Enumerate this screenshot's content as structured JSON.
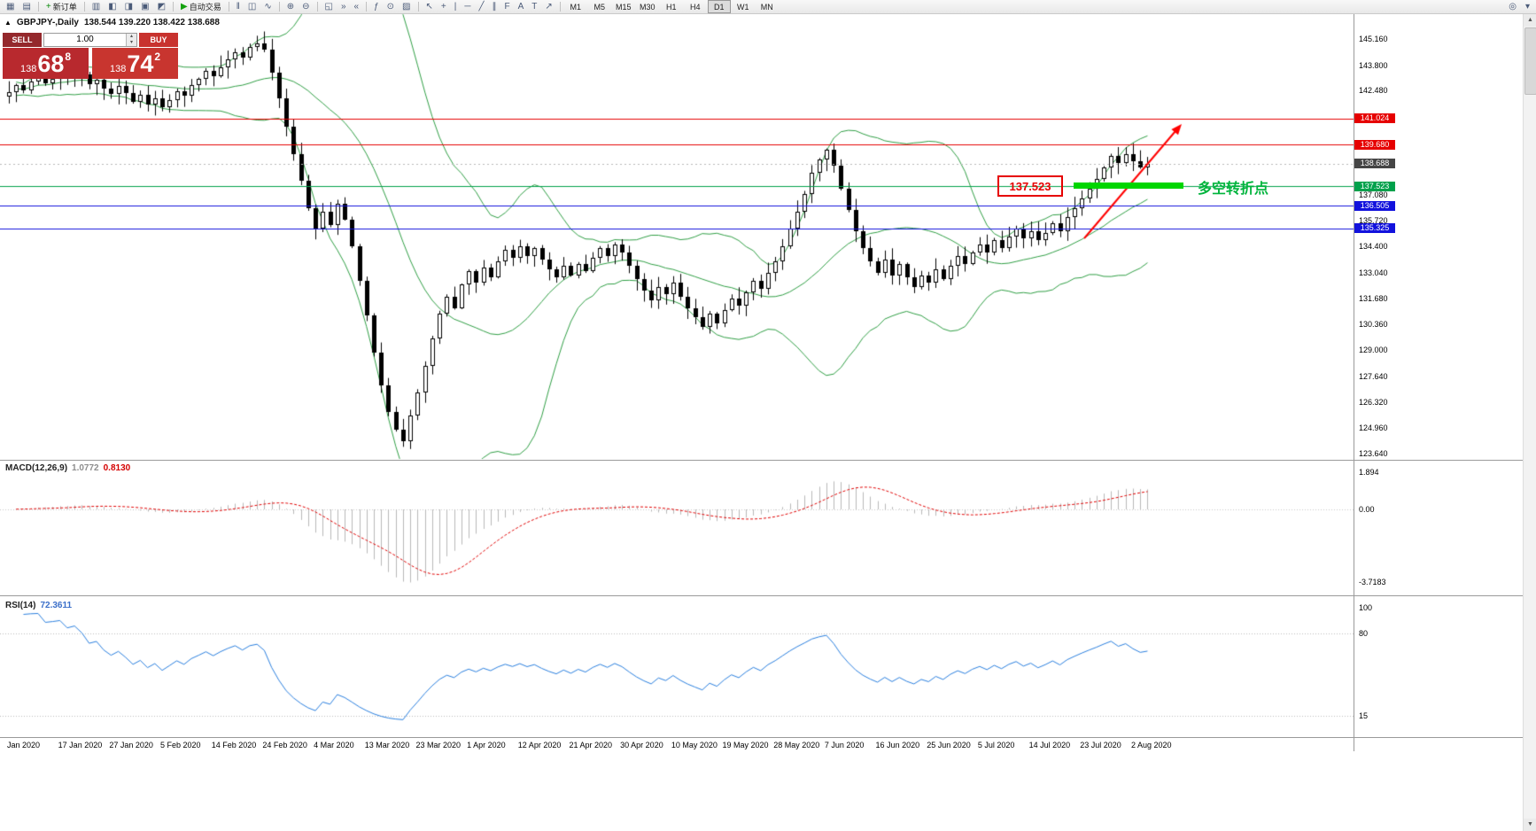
{
  "toolbar": {
    "items": [
      {
        "name": "new-chart-icon",
        "glyph": "▦"
      },
      {
        "name": "chart-profiles-icon",
        "glyph": "▤"
      },
      {
        "name": "sep"
      },
      {
        "name": "new-order-button",
        "glyph": "+",
        "glyph_color": "#0a8a0a",
        "label": "新订单"
      },
      {
        "name": "sep"
      },
      {
        "name": "market-watch-icon",
        "glyph": "▥"
      },
      {
        "name": "data-window-icon",
        "glyph": "◧"
      },
      {
        "name": "navigator-icon",
        "glyph": "◨"
      },
      {
        "name": "terminal-icon",
        "glyph": "▣"
      },
      {
        "name": "strategy-tester-icon",
        "glyph": "◩"
      },
      {
        "name": "sep"
      },
      {
        "name": "autotrading-button",
        "glyph": "▶",
        "glyph_color": "#13a10e",
        "label": "自动交易"
      },
      {
        "name": "sep"
      },
      {
        "name": "bar-chart-icon",
        "glyph": "‖"
      },
      {
        "name": "candlestick-chart-icon",
        "glyph": "◫"
      },
      {
        "name": "line-chart-icon",
        "glyph": "∿"
      },
      {
        "name": "sep"
      },
      {
        "name": "zoom-in-icon",
        "glyph": "⊕"
      },
      {
        "name": "zoom-out-icon",
        "glyph": "⊖"
      },
      {
        "name": "sep"
      },
      {
        "name": "tile-windows-icon",
        "glyph": "◱"
      },
      {
        "name": "autoscroll-icon",
        "glyph": "»"
      },
      {
        "name": "chart-shift-icon",
        "glyph": "«"
      },
      {
        "name": "sep"
      },
      {
        "name": "indicators-icon",
        "glyph": "ƒ"
      },
      {
        "name": "periods-icon",
        "glyph": "⊙"
      },
      {
        "name": "templates-icon",
        "glyph": "▨"
      },
      {
        "name": "sep"
      },
      {
        "name": "cursor-icon",
        "glyph": "↖"
      },
      {
        "name": "crosshair-icon",
        "glyph": "+"
      },
      {
        "name": "vertical-line-icon",
        "glyph": "|"
      },
      {
        "name": "horizontal-line-icon",
        "glyph": "─"
      },
      {
        "name": "trendline-icon",
        "glyph": "╱"
      },
      {
        "name": "channel-icon",
        "glyph": "∥"
      },
      {
        "name": "fibonacci-icon",
        "glyph": "F"
      },
      {
        "name": "text-icon",
        "glyph": "A"
      },
      {
        "name": "text-label-icon",
        "glyph": "T"
      },
      {
        "name": "arrow-tool-icon",
        "glyph": "↗"
      },
      {
        "name": "sep"
      }
    ],
    "timeframes": [
      "M1",
      "M5",
      "M15",
      "M30",
      "H1",
      "H4",
      "D1",
      "W1",
      "MN"
    ],
    "active_timeframe": "D1",
    "right_items": [
      {
        "name": "search-icon",
        "glyph": "◎"
      },
      {
        "name": "toolbar-overflow-icon",
        "glyph": "▾"
      }
    ]
  },
  "one_click": {
    "toggle_glyph": "▲",
    "sell_label": "SELL",
    "buy_label": "BUY",
    "volume": "1.00",
    "spinner_up": "▴",
    "spinner_down": "▾",
    "bid": {
      "prefix": "138",
      "big": "68",
      "sup": "8"
    },
    "ask": {
      "prefix": "138",
      "big": "74",
      "sup": "2"
    },
    "colors": {
      "sell_btn": "#94282c",
      "buy_btn": "#c8322e",
      "bid_box": "#b8292e",
      "ask_box": "#c8352f"
    }
  },
  "chart": {
    "symbol_period": "GBPJPY-,Daily",
    "ohlc_text": "138.544 139.220 138.422 138.688",
    "scale_ticks": [
      "145.160",
      "143.800",
      "142.480",
      "137.080",
      "135.720",
      "134.400",
      "133.040",
      "131.680",
      "130.360",
      "129.000",
      "127.640",
      "126.320",
      "124.960",
      "123.640"
    ],
    "price_tags": [
      {
        "text": "141.024",
        "color": "#e60000"
      },
      {
        "text": "139.680",
        "color": "#e60000"
      },
      {
        "text": "138.688",
        "color": "#454545"
      },
      {
        "text": "137.523",
        "color": "#00a14b"
      },
      {
        "text": "136.505",
        "color": "#1212dd"
      },
      {
        "text": "135.325",
        "color": "#1212dd"
      }
    ],
    "annotations": {
      "level_box_text": "137.523",
      "cn_text": "多空转折点"
    }
  },
  "macd": {
    "label": "MACD(12,26,9)",
    "value_main": "1.0772",
    "value_signal": "0.8130",
    "scale": [
      "1.894",
      "0.00",
      "-3.7183"
    ]
  },
  "rsi": {
    "label": "RSI(14)",
    "value": "72.3611",
    "scale": [
      "100",
      "80",
      "15"
    ]
  },
  "scrollbar": {
    "up": "▲",
    "down": "▼"
  },
  "colors": {
    "bollinger": "#2f9e44",
    "rsi_line": "#2a7fde",
    "macd_signal": "#e00000",
    "macd_histogram": "#b8b8b8",
    "current_price_line": "#b8b8b8",
    "arrow_red": "#ff0000"
  },
  "chart_data": {
    "type": "candlestick",
    "symbol": "GBPJPY-",
    "timeframe": "Daily",
    "x_labels": [
      "Jan 2020",
      "17 Jan 2020",
      "27 Jan 2020",
      "5 Feb 2020",
      "14 Feb 2020",
      "24 Feb 2020",
      "4 Mar 2020",
      "13 Mar 2020",
      "23 Mar 2020",
      "1 Apr 2020",
      "12 Apr 2020",
      "21 Apr 2020",
      "30 Apr 2020",
      "10 May 2020",
      "19 May 2020",
      "28 May 2020",
      "7 Jun 2020",
      "16 Jun 2020",
      "25 Jun 2020",
      "5 Jul 2020",
      "14 Jul 2020",
      "23 Jul 2020",
      "2 Aug 2020"
    ],
    "bars_per_label": 7,
    "closes": [
      142.4,
      142.75,
      142.5,
      142.95,
      143.2,
      142.85,
      143.1,
      143.45,
      143.15,
      143.6,
      143.3,
      142.8,
      143.05,
      142.6,
      142.3,
      142.7,
      142.35,
      141.9,
      142.25,
      141.75,
      142.1,
      141.6,
      142.0,
      142.45,
      142.2,
      142.75,
      143.1,
      143.5,
      143.25,
      143.7,
      144.1,
      144.45,
      144.2,
      144.75,
      144.95,
      144.6,
      143.4,
      142.1,
      140.6,
      139.2,
      137.8,
      136.4,
      135.3,
      136.2,
      135.5,
      136.6,
      135.8,
      134.4,
      132.6,
      130.8,
      128.9,
      127.2,
      125.8,
      124.9,
      124.3,
      125.6,
      126.8,
      128.2,
      129.6,
      130.9,
      131.8,
      131.2,
      132.4,
      133.1,
      132.5,
      133.3,
      132.8,
      133.6,
      134.2,
      133.8,
      134.4,
      133.9,
      134.3,
      133.7,
      133.2,
      132.8,
      133.4,
      132.9,
      133.5,
      133.1,
      133.8,
      134.3,
      133.9,
      134.5,
      134.1,
      133.4,
      132.7,
      132.1,
      131.6,
      132.3,
      131.9,
      132.5,
      131.8,
      131.2,
      130.7,
      130.2,
      130.9,
      130.4,
      131.1,
      131.7,
      131.3,
      132.0,
      132.6,
      132.2,
      133.0,
      133.6,
      134.4,
      135.3,
      136.2,
      137.1,
      138.2,
      138.9,
      139.4,
      138.6,
      137.4,
      136.3,
      135.2,
      134.3,
      133.6,
      133.0,
      133.7,
      132.9,
      133.5,
      132.8,
      132.3,
      132.9,
      132.5,
      133.2,
      132.7,
      133.4,
      133.9,
      133.5,
      134.1,
      134.5,
      134.1,
      134.7,
      134.3,
      134.9,
      135.3,
      134.8,
      135.2,
      134.7,
      135.1,
      135.6,
      135.2,
      135.9,
      136.4,
      136.9,
      137.4,
      137.9,
      138.5,
      139.1,
      138.7,
      139.2,
      138.8,
      138.5,
      138.69
    ],
    "last_bar_ohlc": {
      "open": 138.544,
      "high": 139.22,
      "low": 138.422,
      "close": 138.688
    },
    "current_price": 138.688,
    "price_axis_range": [
      123.36,
      146.55
    ],
    "overlays": {
      "bollinger_period": 20,
      "bollinger_deviation": 2
    },
    "horizontal_levels": [
      {
        "price": 141.024,
        "color": "#e60000"
      },
      {
        "price": 139.68,
        "color": "#e60000"
      },
      {
        "price": 137.523,
        "color": "#00a14b",
        "note": "多空转折点"
      },
      {
        "price": 136.505,
        "color": "#1212dd"
      },
      {
        "price": 135.325,
        "color": "#1212dd"
      }
    ],
    "indicators": [
      {
        "name": "MACD",
        "params": [
          12,
          26,
          9
        ],
        "current": [
          1.0772,
          0.813
        ],
        "range": [
          -3.7183,
          1.894
        ]
      },
      {
        "name": "RSI",
        "params": [
          14
        ],
        "current": 72.3611,
        "range": [
          0,
          100
        ],
        "levels": [
          80,
          15
        ]
      }
    ]
  }
}
